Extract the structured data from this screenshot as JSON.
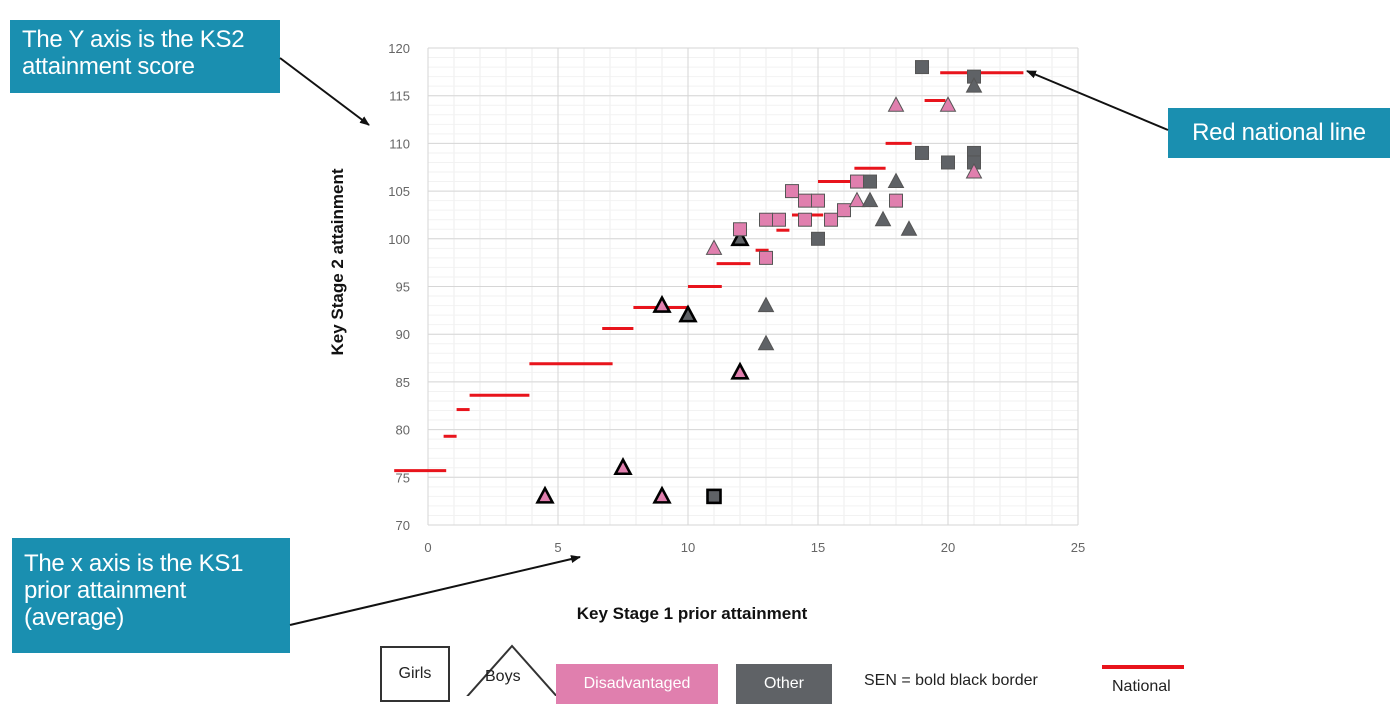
{
  "callouts": {
    "y_axis_line1": "The Y axis is the KS2",
    "y_axis_line2": "attainment score",
    "x_axis_line1": "The x axis is the KS1",
    "x_axis_line2": "prior attainment",
    "x_axis_line3": "(average)",
    "red_line": "Red national line"
  },
  "legend": {
    "girls": "Girls",
    "boys": "Boys",
    "disadvantaged": "Disadvantaged",
    "other": "Other",
    "sen": "SEN = bold black border",
    "national": "National"
  },
  "colors": {
    "disadvantaged": "#e07fae",
    "other": "#5f6266",
    "national": "#e8141c",
    "callout": "#1a8fb0"
  },
  "chart_data": {
    "type": "scatter",
    "xlabel": "Key Stage 1 prior attainment",
    "ylabel": "Key Stage 2 attainment",
    "xlim": [
      0,
      25
    ],
    "ylim": [
      70,
      120
    ],
    "x_ticks": [
      0,
      5,
      10,
      15,
      20,
      25
    ],
    "y_ticks": [
      70,
      75,
      80,
      85,
      90,
      95,
      100,
      105,
      110,
      115,
      120
    ],
    "grid": true,
    "national_line": [
      {
        "x1": -1.3,
        "x2": 0.7,
        "y": 75.7
      },
      {
        "x1": 0.6,
        "x2": 1.1,
        "y": 79.3
      },
      {
        "x1": 1.1,
        "x2": 1.6,
        "y": 82.1
      },
      {
        "x1": 1.6,
        "x2": 3.9,
        "y": 83.6
      },
      {
        "x1": 3.9,
        "x2": 7.1,
        "y": 86.9
      },
      {
        "x1": 6.7,
        "x2": 7.9,
        "y": 90.6
      },
      {
        "x1": 7.9,
        "x2": 10.0,
        "y": 92.8
      },
      {
        "x1": 10.0,
        "x2": 11.3,
        "y": 95.0
      },
      {
        "x1": 11.1,
        "x2": 12.4,
        "y": 97.4
      },
      {
        "x1": 12.6,
        "x2": 13.1,
        "y": 98.8
      },
      {
        "x1": 13.4,
        "x2": 13.9,
        "y": 100.9
      },
      {
        "x1": 14.0,
        "x2": 15.2,
        "y": 102.5
      },
      {
        "x1": 15.0,
        "x2": 16.6,
        "y": 106.0
      },
      {
        "x1": 16.4,
        "x2": 17.6,
        "y": 107.4
      },
      {
        "x1": 17.6,
        "x2": 18.6,
        "y": 110.0
      },
      {
        "x1": 19.1,
        "x2": 19.9,
        "y": 114.5
      },
      {
        "x1": 19.7,
        "x2": 22.9,
        "y": 117.4
      }
    ],
    "points": [
      {
        "x": 4.5,
        "y": 73,
        "shape": "triangle",
        "group": "disadvantaged",
        "sen": true
      },
      {
        "x": 7.5,
        "y": 76,
        "shape": "triangle",
        "group": "disadvantaged",
        "sen": true
      },
      {
        "x": 9,
        "y": 73,
        "shape": "triangle",
        "group": "disadvantaged",
        "sen": true
      },
      {
        "x": 9,
        "y": 93,
        "shape": "triangle",
        "group": "disadvantaged",
        "sen": true
      },
      {
        "x": 10,
        "y": 92,
        "shape": "triangle",
        "group": "other",
        "sen": true
      },
      {
        "x": 11,
        "y": 73,
        "shape": "square",
        "group": "other",
        "sen": true
      },
      {
        "x": 11,
        "y": 99,
        "shape": "triangle",
        "group": "disadvantaged",
        "sen": false
      },
      {
        "x": 12,
        "y": 100,
        "shape": "triangle",
        "group": "other",
        "sen": true
      },
      {
        "x": 12,
        "y": 101,
        "shape": "square",
        "group": "disadvantaged",
        "sen": false
      },
      {
        "x": 12,
        "y": 86,
        "shape": "triangle",
        "group": "disadvantaged",
        "sen": true
      },
      {
        "x": 13,
        "y": 98,
        "shape": "square",
        "group": "disadvantaged",
        "sen": false
      },
      {
        "x": 13,
        "y": 102,
        "shape": "square",
        "group": "disadvantaged",
        "sen": false
      },
      {
        "x": 13,
        "y": 93,
        "shape": "triangle",
        "group": "other",
        "sen": false
      },
      {
        "x": 13,
        "y": 89,
        "shape": "triangle",
        "group": "other",
        "sen": false
      },
      {
        "x": 13.5,
        "y": 102,
        "shape": "square",
        "group": "disadvantaged",
        "sen": false
      },
      {
        "x": 14,
        "y": 105,
        "shape": "square",
        "group": "disadvantaged",
        "sen": false
      },
      {
        "x": 14.5,
        "y": 102,
        "shape": "square",
        "group": "disadvantaged",
        "sen": false
      },
      {
        "x": 14.5,
        "y": 104,
        "shape": "square",
        "group": "disadvantaged",
        "sen": false
      },
      {
        "x": 15,
        "y": 104,
        "shape": "square",
        "group": "disadvantaged",
        "sen": false
      },
      {
        "x": 15,
        "y": 100,
        "shape": "square",
        "group": "other",
        "sen": false
      },
      {
        "x": 15.5,
        "y": 102,
        "shape": "square",
        "group": "disadvantaged",
        "sen": false
      },
      {
        "x": 16,
        "y": 103,
        "shape": "square",
        "group": "disadvantaged",
        "sen": false
      },
      {
        "x": 16.5,
        "y": 104,
        "shape": "triangle",
        "group": "disadvantaged",
        "sen": false
      },
      {
        "x": 16.5,
        "y": 106,
        "shape": "square",
        "group": "disadvantaged",
        "sen": false
      },
      {
        "x": 17,
        "y": 106,
        "shape": "square",
        "group": "other",
        "sen": false
      },
      {
        "x": 17,
        "y": 104,
        "shape": "triangle",
        "group": "other",
        "sen": false
      },
      {
        "x": 17.5,
        "y": 102,
        "shape": "triangle",
        "group": "other",
        "sen": false
      },
      {
        "x": 18,
        "y": 106,
        "shape": "triangle",
        "group": "other",
        "sen": false
      },
      {
        "x": 18,
        "y": 104,
        "shape": "square",
        "group": "disadvantaged",
        "sen": false
      },
      {
        "x": 18,
        "y": 114,
        "shape": "triangle",
        "group": "disadvantaged",
        "sen": false
      },
      {
        "x": 18.5,
        "y": 101,
        "shape": "triangle",
        "group": "other",
        "sen": false
      },
      {
        "x": 19,
        "y": 118,
        "shape": "square",
        "group": "other",
        "sen": false
      },
      {
        "x": 19,
        "y": 109,
        "shape": "square",
        "group": "other",
        "sen": false
      },
      {
        "x": 20,
        "y": 108,
        "shape": "square",
        "group": "other",
        "sen": false
      },
      {
        "x": 20,
        "y": 114,
        "shape": "triangle",
        "group": "disadvantaged",
        "sen": false
      },
      {
        "x": 21,
        "y": 117,
        "shape": "square",
        "group": "other",
        "sen": false
      },
      {
        "x": 21,
        "y": 116,
        "shape": "triangle",
        "group": "other",
        "sen": false
      },
      {
        "x": 21,
        "y": 109,
        "shape": "square",
        "group": "other",
        "sen": false
      },
      {
        "x": 21,
        "y": 108,
        "shape": "square",
        "group": "other",
        "sen": false
      },
      {
        "x": 21,
        "y": 107,
        "shape": "triangle",
        "group": "disadvantaged",
        "sen": false
      }
    ]
  }
}
